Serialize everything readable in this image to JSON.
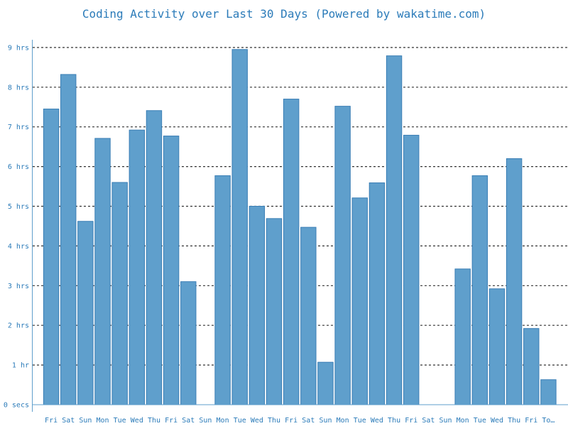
{
  "chart_data": {
    "type": "bar",
    "title": "Coding Activity over Last 30 Days (Powered by wakatime.com)",
    "xlabel": "",
    "ylabel": "",
    "grid": true,
    "ylim": [
      0,
      9
    ],
    "yticks": [
      {
        "value": 0,
        "label": "0 secs"
      },
      {
        "value": 1,
        "label": "1 hr"
      },
      {
        "value": 2,
        "label": "2 hrs"
      },
      {
        "value": 3,
        "label": "3 hrs"
      },
      {
        "value": 4,
        "label": "4 hrs"
      },
      {
        "value": 5,
        "label": "5 hrs"
      },
      {
        "value": 6,
        "label": "6 hrs"
      },
      {
        "value": 7,
        "label": "7 hrs"
      },
      {
        "value": 8,
        "label": "8 hrs"
      },
      {
        "value": 9,
        "label": "9 hrs"
      }
    ],
    "categories": [
      "Fri",
      "Sat",
      "Sun",
      "Mon",
      "Tue",
      "Wed",
      "Thu",
      "Fri",
      "Sat",
      "Sun",
      "Mon",
      "Tue",
      "Wed",
      "Thu",
      "Fri",
      "Sat",
      "Sun",
      "Mon",
      "Tue",
      "Wed",
      "Thu",
      "Fri",
      "Sat",
      "Sun",
      "Mon",
      "Tue",
      "Wed",
      "Thu",
      "Fri",
      "To…"
    ],
    "values": [
      7.45,
      8.32,
      4.62,
      6.71,
      5.6,
      6.92,
      7.41,
      6.77,
      3.1,
      0,
      5.77,
      8.95,
      5.0,
      4.69,
      7.7,
      4.47,
      1.07,
      7.52,
      5.21,
      5.59,
      8.79,
      6.79,
      0,
      0,
      3.42,
      5.77,
      2.92,
      6.2,
      1.92,
      0.63
    ],
    "colors": {
      "bar_fill": "#5f9fcc",
      "bar_stroke": "#3a7eb5",
      "text": "#2b7bb9",
      "axis": "#5f9fcc",
      "grid": "#333333"
    }
  }
}
